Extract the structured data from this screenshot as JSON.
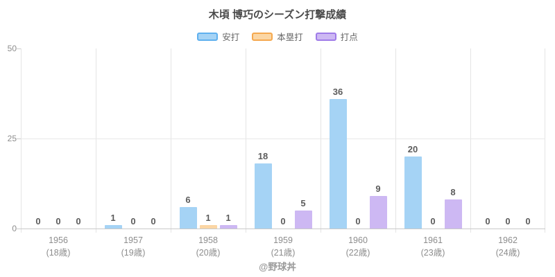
{
  "title": "木頃 博巧のシーズン打撃成績",
  "watermark": "@野球丼",
  "chart_data": {
    "type": "bar",
    "title": "木頃 博巧のシーズン打撃成績",
    "categories": [
      "1956",
      "1957",
      "1958",
      "1959",
      "1960",
      "1961",
      "1962"
    ],
    "category_sublabels": [
      "(18歳)",
      "(19歳)",
      "(20歳)",
      "(21歳)",
      "(22歳)",
      "(23歳)",
      "(24歳)"
    ],
    "series": [
      {
        "name": "安打",
        "fill": "#a5d3f5",
        "stroke": "#5fb0ee",
        "values": [
          0,
          1,
          6,
          18,
          36,
          20,
          0
        ]
      },
      {
        "name": "本塁打",
        "fill": "#fbd6a4",
        "stroke": "#f5a84e",
        "values": [
          0,
          0,
          1,
          0,
          0,
          0,
          0
        ]
      },
      {
        "name": "打点",
        "fill": "#cdb8f3",
        "stroke": "#9f7be8",
        "values": [
          0,
          0,
          1,
          5,
          9,
          8,
          0
        ]
      }
    ],
    "xlabel": "",
    "ylabel": "",
    "ylim": [
      0,
      50
    ],
    "yticks": [
      0,
      25,
      50
    ],
    "grid": true,
    "legend_position": "top",
    "value_labels": true,
    "watermark": "@野球丼"
  }
}
